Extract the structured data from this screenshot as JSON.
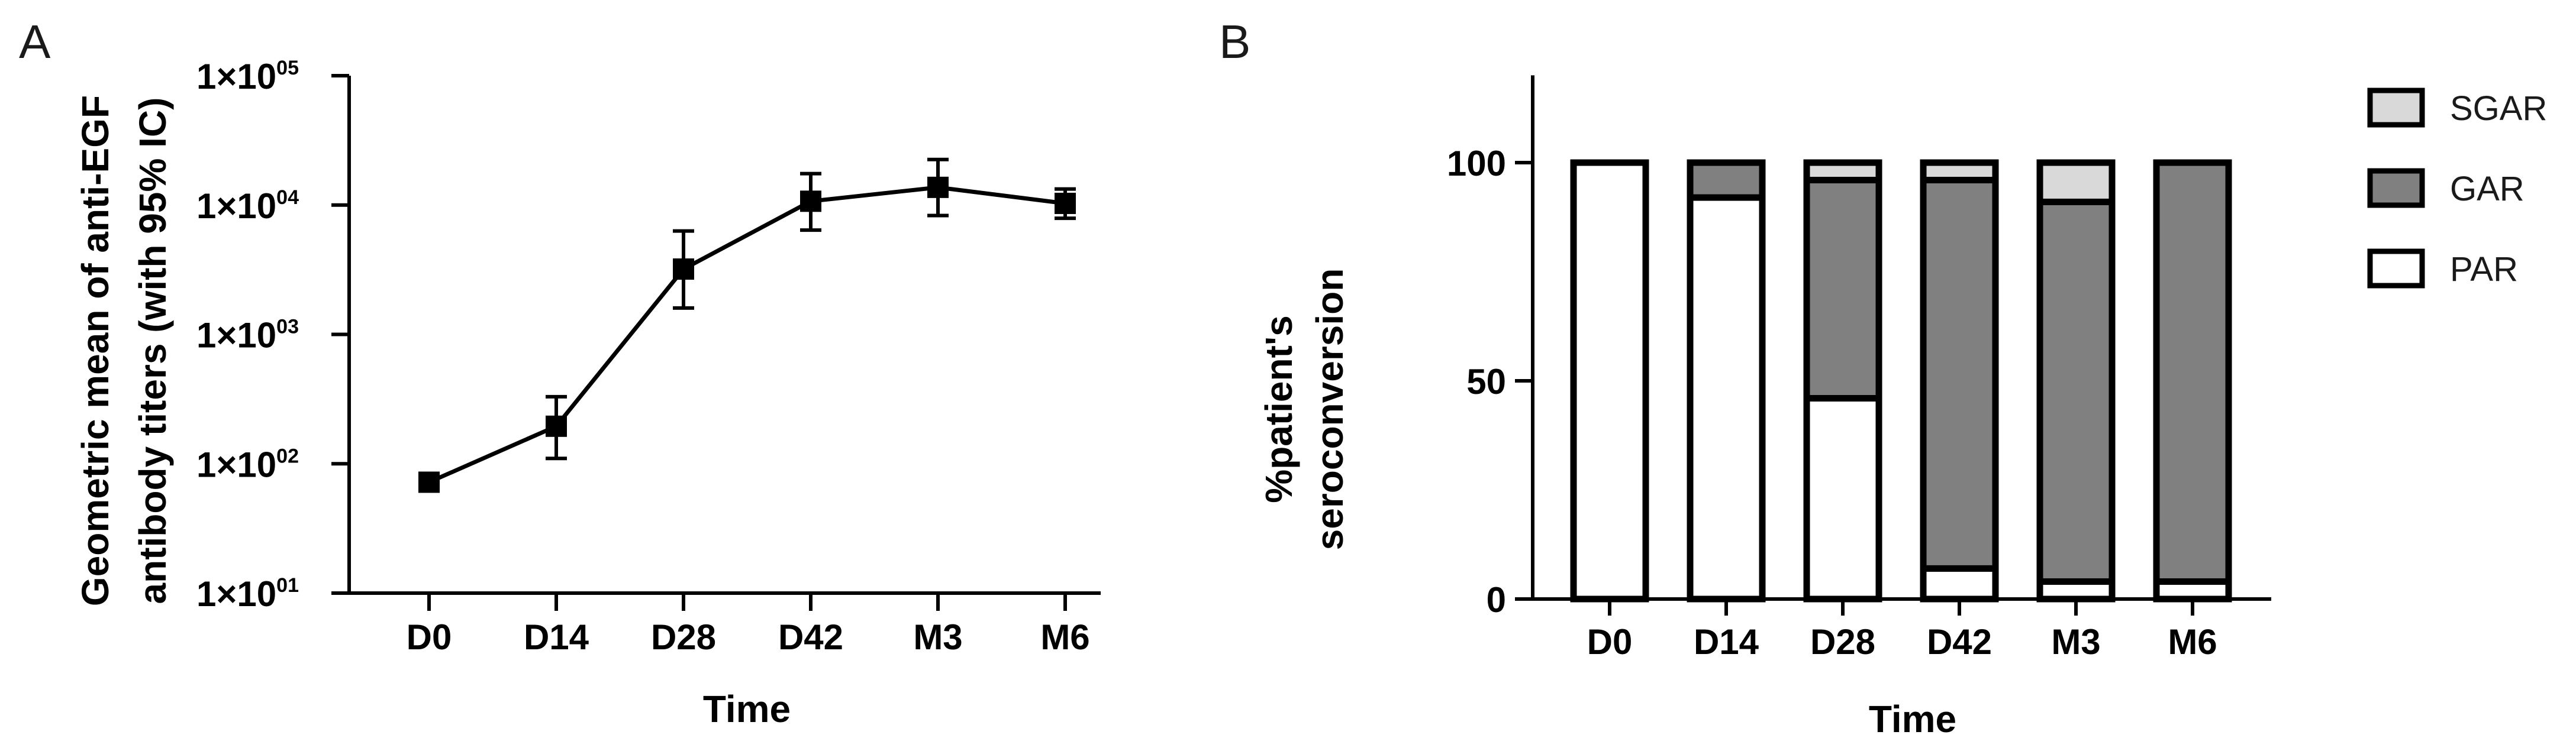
{
  "chart_data": [
    {
      "panel": "A",
      "type": "line",
      "title": "",
      "xlabel": "Time",
      "ylabel_lines": [
        "Geometric mean of anti-EGF",
        "antibody titers (with 95% IC)"
      ],
      "yscale": "log",
      "ylim": [
        10,
        100000
      ],
      "categories": [
        "D0",
        "D14",
        "D28",
        "D42",
        "M3",
        "M6"
      ],
      "y_ticks": [
        {
          "value": 10,
          "mantissa": "1×10",
          "exp": "01"
        },
        {
          "value": 100,
          "mantissa": "1×10",
          "exp": "02"
        },
        {
          "value": 1000,
          "mantissa": "1×10",
          "exp": "03"
        },
        {
          "value": 10000,
          "mantissa": "1×10",
          "exp": "04"
        },
        {
          "value": 100000,
          "mantissa": "1×10",
          "exp": "05"
        }
      ],
      "series": [
        {
          "values": [
            72,
            195,
            3200,
            10700,
            13700,
            10300
          ],
          "ci_lower": [
            null,
            110,
            1600,
            6400,
            8300,
            7900
          ],
          "ci_upper": [
            null,
            330,
            6300,
            17500,
            22500,
            13300
          ],
          "color": "#000000",
          "marker": "square"
        }
      ]
    },
    {
      "panel": "B",
      "type": "bar",
      "stacked": true,
      "title": "",
      "xlabel": "Time",
      "ylabel_lines": [
        "%patient's",
        "seroconversion"
      ],
      "ylim": [
        0,
        120
      ],
      "y_ticks": [
        0,
        50,
        100
      ],
      "categories": [
        "D0",
        "D14",
        "D28",
        "D42",
        "M3",
        "M6"
      ],
      "series": [
        {
          "name": "PAR",
          "values": [
            100,
            92,
            46,
            7,
            4,
            4
          ],
          "color": "#ffffff"
        },
        {
          "name": "GAR",
          "values": [
            0,
            8,
            50,
            89,
            87,
            96
          ],
          "color": "#808080"
        },
        {
          "name": "SGAR",
          "values": [
            0,
            0,
            4,
            4,
            9,
            0
          ],
          "color": "#d9d9d9"
        }
      ],
      "legend": {
        "placement": "right",
        "order": [
          "SGAR",
          "GAR",
          "PAR"
        ]
      }
    }
  ]
}
